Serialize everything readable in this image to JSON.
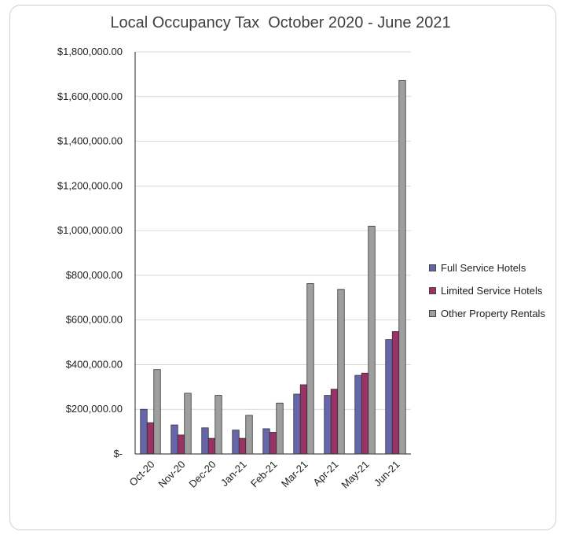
{
  "chart_data": {
    "type": "bar",
    "title": "Local Occupancy Tax  October 2020 - June 2021",
    "categories": [
      "Oct-20",
      "Nov-20",
      "Dec-20",
      "Jan-21",
      "Feb-21",
      "Mar-21",
      "Apr-21",
      "May-21",
      "Jun-21"
    ],
    "series": [
      {
        "name": "Full Service Hotels",
        "color": "#6666aa",
        "values": [
          200000,
          130000,
          117000,
          107000,
          113000,
          268000,
          262000,
          352000,
          512000
        ]
      },
      {
        "name": "Limited Service Hotels",
        "color": "#993366",
        "values": [
          140000,
          85000,
          70000,
          70000,
          97000,
          310000,
          290000,
          362000,
          548000
        ]
      },
      {
        "name": "Other Property Rentals",
        "color": "#9e9e9e",
        "values": [
          378000,
          272000,
          262000,
          173000,
          228000,
          763000,
          737000,
          1020000,
          1672000
        ]
      }
    ],
    "y_ticks": [
      "$-",
      "$200,000.00",
      "$400,000.00",
      "$600,000.00",
      "$800,000.00",
      "$1,000,000.00",
      "$1,200,000.00",
      "$1,400,000.00",
      "$1,600,000.00",
      "$1,800,000.00"
    ],
    "ylim": [
      0,
      1800000
    ],
    "grid": true,
    "legend_position": "right"
  }
}
